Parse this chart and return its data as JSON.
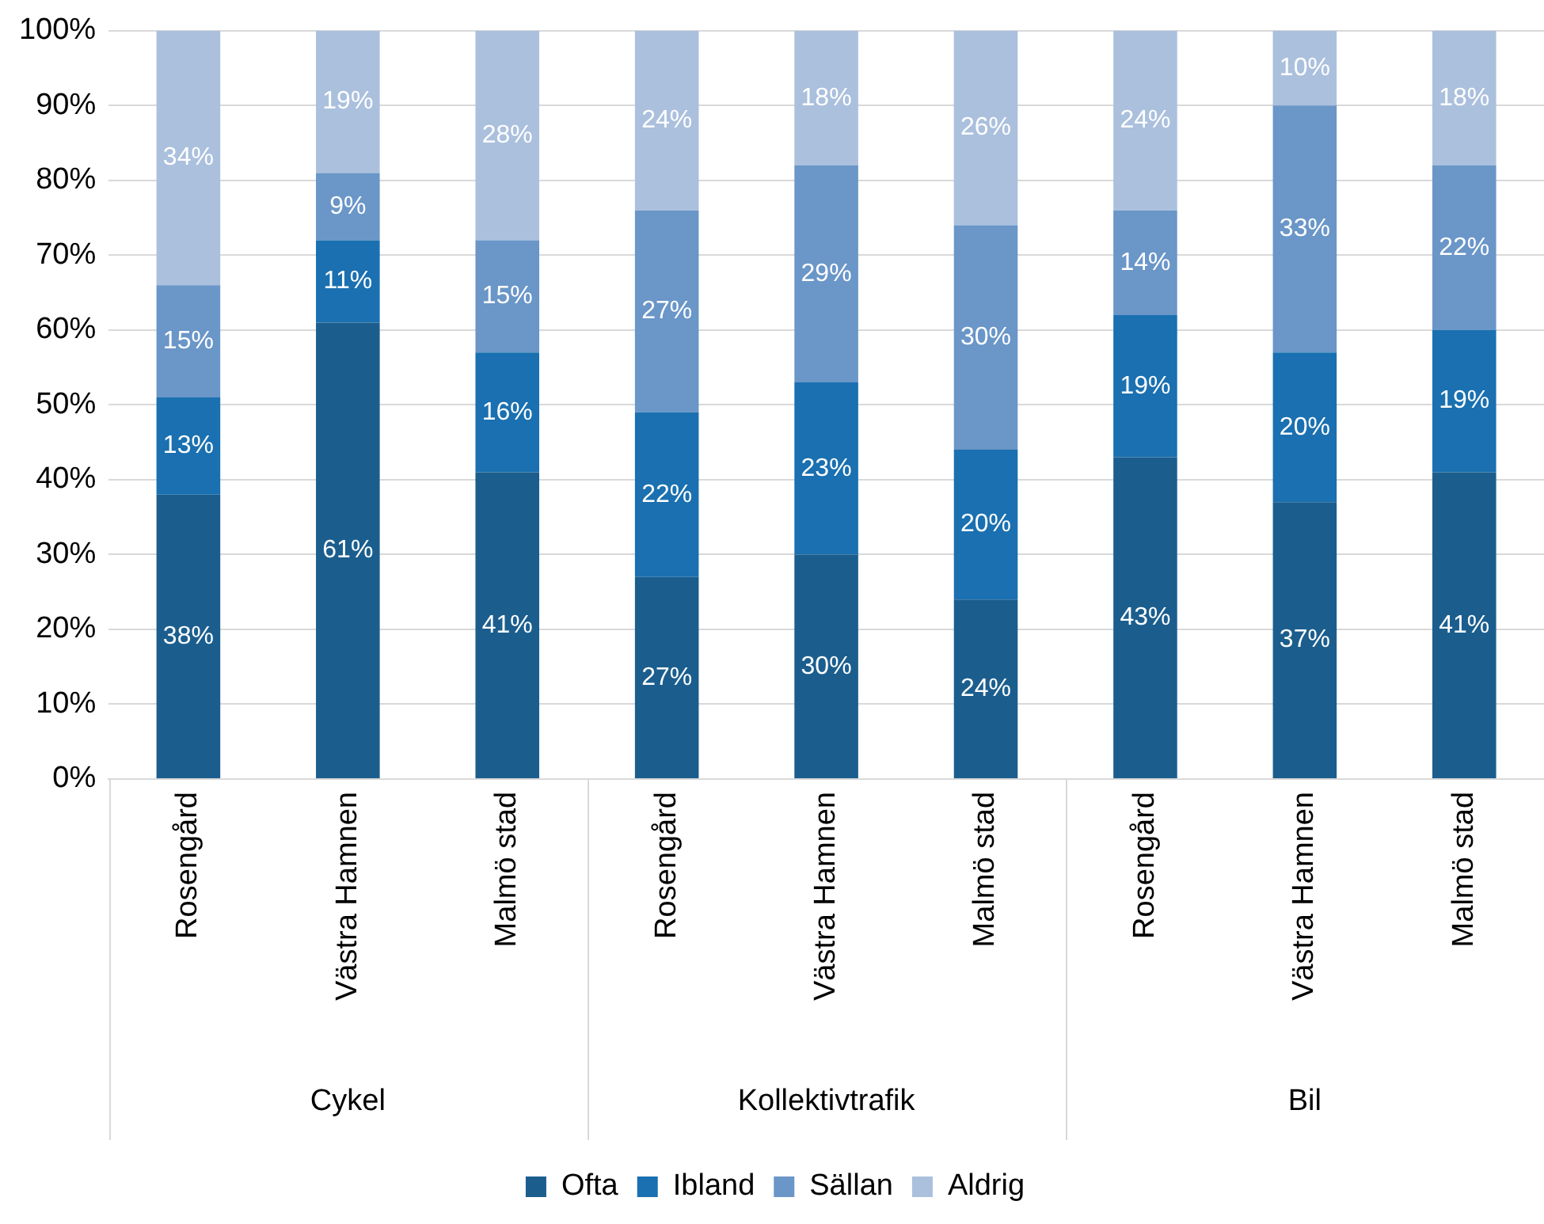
{
  "chart_data": {
    "type": "bar",
    "stacked": true,
    "categories": [
      "Rosengård",
      "Västra Hamnen",
      "Malmö stad",
      "Rosengård",
      "Västra Hamnen",
      "Malmö stad",
      "Rosengård",
      "Västra Hamnen",
      "Malmö stad"
    ],
    "annotations": [
      "Cykel",
      "Kollektivtrafik",
      "Bil"
    ],
    "series": [
      {
        "name": "Ofta",
        "color": "#1b5e8e",
        "values": [
          38,
          61,
          41,
          27,
          30,
          24,
          43,
          37,
          41
        ],
        "value_labels": [
          "38%",
          "61%",
          "41%",
          "27%",
          "30%",
          "24%",
          "43%",
          "37%",
          "41%"
        ]
      },
      {
        "name": "Ibland",
        "color": "#1a70b0",
        "values": [
          13,
          11,
          16,
          22,
          23,
          20,
          19,
          20,
          19
        ],
        "value_labels": [
          "13%",
          "11%",
          "16%",
          "22%",
          "23%",
          "20%",
          "19%",
          "20%",
          "19%"
        ]
      },
      {
        "name": "Sällan",
        "color": "#6a96c8",
        "values": [
          15,
          9,
          15,
          27,
          29,
          30,
          14,
          33,
          22
        ],
        "value_labels": [
          "15%",
          "9%",
          "15%",
          "27%",
          "29%",
          "30%",
          "14%",
          "33%",
          "22%"
        ]
      },
      {
        "name": "Aldrig",
        "color": "#abc0dd",
        "values": [
          34,
          19,
          28,
          24,
          18,
          26,
          24,
          10,
          18
        ],
        "value_labels": [
          "34%",
          "19%",
          "28%",
          "24%",
          "18%",
          "26%",
          "24%",
          "10%",
          "18%"
        ]
      }
    ],
    "ylim": [
      0,
      100
    ],
    "yticks": [
      {
        "value": 0,
        "label": "0%"
      },
      {
        "value": 10,
        "label": "10%"
      },
      {
        "value": 20,
        "label": "20%"
      },
      {
        "value": 30,
        "label": "30%"
      },
      {
        "value": 40,
        "label": "40%"
      },
      {
        "value": 50,
        "label": "50%"
      },
      {
        "value": 60,
        "label": "60%"
      },
      {
        "value": 70,
        "label": "70%"
      },
      {
        "value": 80,
        "label": "80%"
      },
      {
        "value": 90,
        "label": "90%"
      },
      {
        "value": 100,
        "label": "100%"
      }
    ],
    "grid": "y",
    "legend": "bottom"
  }
}
